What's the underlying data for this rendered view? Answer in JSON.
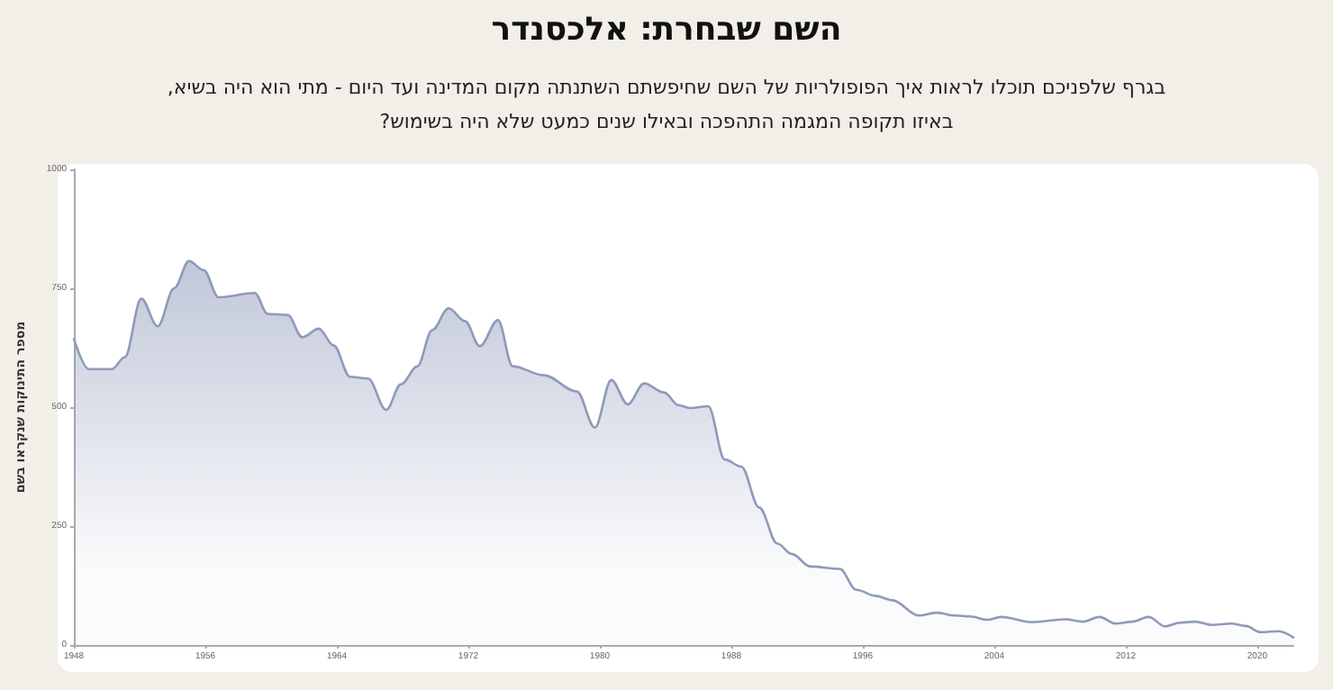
{
  "chart_data": {
    "type": "area",
    "title": "השם שבחרת: אלכסנדר",
    "subtitle": "בגרף שלפניכם תוכלו לראות איך הפופולריות של השם שחיפשתם השתנתה מקום המדינה ועד היום - מתי הוא היה בשיא,\nבאיזו תקופה המגמה התהפכה ובאילו שנים כמעט שלא היה בשימוש?",
    "ylabel": "מספר התינוקות שנקראו בשם",
    "x": [
      1948,
      1948.9,
      1950.3,
      1951.1,
      1952.1,
      1953.1,
      1954.1,
      1955,
      1955.9,
      1956.8,
      1959,
      1959.8,
      1961,
      1961.9,
      1962.9,
      1963.8,
      1964.8,
      1965.9,
      1967,
      1967.9,
      1968.9,
      1969.8,
      1970.8,
      1971.8,
      1972.7,
      1973.8,
      1974.7,
      1976.6,
      1978.6,
      1979.7,
      1980.7,
      1981.7,
      1982.7,
      1983.9,
      1984.8,
      1985.5,
      1986.6,
      1987.6,
      1988.6,
      1989.7,
      1990.8,
      1991.7,
      1992.8,
      1994.6,
      1995.6,
      1996.8,
      1997.8,
      1999.4,
      2000.5,
      2001.6,
      2002.5,
      2003.6,
      2004.4,
      2006.3,
      2008.3,
      2009.4,
      2010.4,
      2011.4,
      2012.4,
      2013.4,
      2014.4,
      2015.3,
      2016.2,
      2017.3,
      2018.4,
      2019.3,
      2020.2,
      2021.3,
      2022.2
    ],
    "series": [
      {
        "color": "#8f9aba",
        "values": [
          643,
          580,
          580,
          605,
          728,
          670,
          750,
          807,
          788,
          731,
          740,
          696,
          694,
          647,
          665,
          630,
          564,
          560,
          494,
          548,
          586,
          662,
          708,
          681,
          628,
          683,
          586,
          567,
          533,
          457,
          557,
          506,
          550,
          531,
          504,
          498,
          502,
          390,
          375,
          289,
          213,
          191,
          165,
          160,
          116,
          103,
          94,
          62,
          68,
          62,
          60,
          53,
          59,
          48,
          54,
          49,
          59,
          45,
          49,
          59,
          39,
          47,
          49,
          42,
          45,
          40,
          27,
          29,
          16
        ]
      }
    ],
    "xlim": [
      1948,
      2022.2
    ],
    "xticks": [
      1948,
      1956,
      1964,
      1972,
      1980,
      1988,
      1996,
      2004,
      2012,
      2020
    ],
    "ylim": [
      0,
      1000
    ],
    "yticks": [
      0,
      250,
      500,
      750,
      1000
    ],
    "grid": false,
    "marker": "none",
    "line_style": "solid"
  }
}
